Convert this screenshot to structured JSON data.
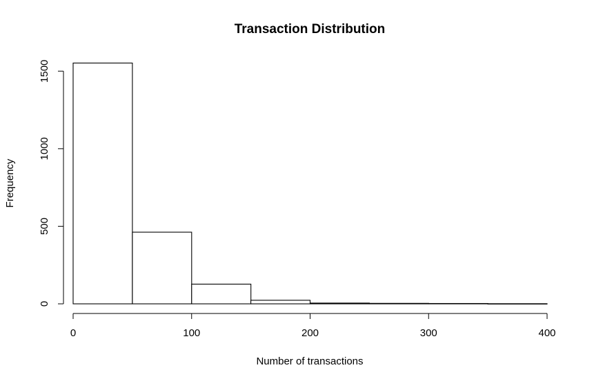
{
  "chart_data": {
    "type": "bar",
    "title": "Transaction Distribution",
    "xlabel": "Number of transactions",
    "ylabel": "Frequency",
    "bins": [
      {
        "start": 0,
        "end": 50,
        "value": 1552
      },
      {
        "start": 50,
        "end": 100,
        "value": 462
      },
      {
        "start": 100,
        "end": 150,
        "value": 127
      },
      {
        "start": 150,
        "end": 200,
        "value": 23
      },
      {
        "start": 200,
        "end": 250,
        "value": 5
      },
      {
        "start": 250,
        "end": 300,
        "value": 3
      },
      {
        "start": 300,
        "end": 350,
        "value": 2
      },
      {
        "start": 350,
        "end": 400,
        "value": 1
      }
    ],
    "xlim": [
      0,
      400
    ],
    "ylim": [
      0,
      1550
    ],
    "x_ticks": [
      0,
      100,
      200,
      300,
      400
    ],
    "y_ticks": [
      0,
      500,
      1000,
      1500
    ],
    "grid": false,
    "legend": "none"
  }
}
